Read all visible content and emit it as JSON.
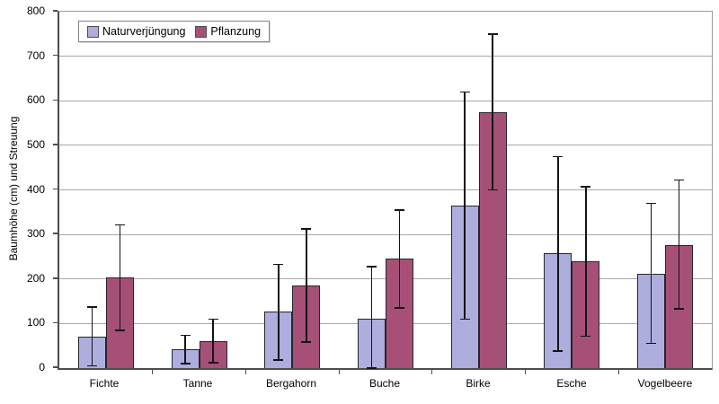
{
  "chart": {
    "y_axis_title": "Baumhöhe (cm) und Streuung",
    "legend_items": [
      {
        "label": "Naturverjüngung",
        "color": "#adaedd"
      },
      {
        "label": "Pflanzung",
        "color": "#a65078"
      }
    ]
  },
  "colors": {
    "natur_fill": "#adaedd",
    "pflanzung_fill": "#a65078",
    "bar_border": "#26262e",
    "gridline": "#a8a8a8",
    "axis": "#4d4d4d",
    "error_bar": "#141414",
    "background": "#ffffff"
  },
  "chart_data": {
    "type": "bar",
    "title": "",
    "xlabel": "",
    "ylabel": "Baumhöhe (cm) und Streuung",
    "ylim": [
      0,
      800
    ],
    "yticks": [
      0,
      100,
      200,
      300,
      400,
      500,
      600,
      700,
      800
    ],
    "grid": true,
    "legend_position": "top-left-inside",
    "error_bars": true,
    "categories": [
      "Fichte",
      "Tanne",
      "Bergahorn",
      "Buche",
      "Birke",
      "Esche",
      "Vogelbeere"
    ],
    "series": [
      {
        "name": "Naturverjüngung",
        "color": "#adaedd",
        "values": [
          70,
          42,
          127,
          110,
          365,
          257,
          212
        ],
        "error_low": [
          5,
          10,
          18,
          0,
          110,
          38,
          55
        ],
        "error_high": [
          137,
          74,
          233,
          228,
          620,
          475,
          370
        ]
      },
      {
        "name": "Pflanzung",
        "color": "#a65078",
        "values": [
          203,
          60,
          185,
          245,
          575,
          240,
          277
        ],
        "error_low": [
          85,
          12,
          58,
          135,
          400,
          72,
          133
        ],
        "error_high": [
          321,
          110,
          312,
          355,
          750,
          407,
          422
        ]
      }
    ]
  }
}
